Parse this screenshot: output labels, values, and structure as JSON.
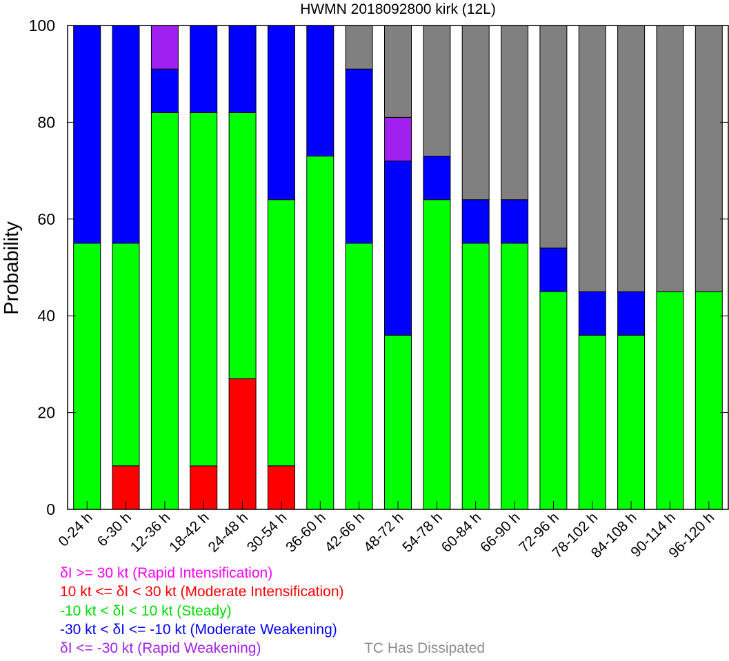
{
  "chart_data": {
    "type": "bar",
    "stacked": true,
    "title": "HWMN 2018092800 kirk (12L)",
    "xlabel": "",
    "ylabel": "Probability",
    "ylim": [
      0,
      100
    ],
    "yticks": [
      0,
      20,
      40,
      60,
      80,
      100
    ],
    "grid": false,
    "categories": [
      "0-24 h",
      "6-30 h",
      "12-36 h",
      "18-42 h",
      "24-48 h",
      "30-54 h",
      "36-60 h",
      "42-66 h",
      "48-72 h",
      "54-78 h",
      "60-84 h",
      "66-90 h",
      "72-96 h",
      "78-102 h",
      "84-108 h",
      "90-114 h",
      "96-120 h"
    ],
    "series": [
      {
        "name": "δI <= -30 kt (Rapid Weakening)",
        "color": "#a020f0",
        "values": [
          0,
          0,
          0,
          0,
          0,
          0,
          0,
          0,
          0,
          0,
          0,
          0,
          0,
          0,
          0,
          0,
          0
        ]
      },
      {
        "name": "10 kt <= δI < 30 kt (Moderate Intensification)",
        "color": "#ff0000",
        "values": [
          0,
          9,
          0,
          9,
          27,
          9,
          0,
          0,
          0,
          0,
          0,
          0,
          0,
          0,
          0,
          0,
          0
        ]
      },
      {
        "name": "-10 kt < δI < 10 kt (Steady)",
        "color": "#00ff00",
        "values": [
          55,
          46,
          82,
          73,
          55,
          55,
          73,
          55,
          36,
          64,
          55,
          55,
          45,
          36,
          36,
          45,
          45
        ]
      },
      {
        "name": "-30 kt < δI <= -10 kt (Moderate Weakening)",
        "color": "#0000ff",
        "values": [
          45,
          45,
          9,
          18,
          18,
          36,
          27,
          36,
          36,
          9,
          9,
          9,
          9,
          9,
          9,
          0,
          0
        ]
      },
      {
        "name": "δI >= 30 kt (Rapid Intensification)",
        "color": "#a020f0",
        "values": [
          0,
          0,
          9,
          0,
          0,
          0,
          0,
          0,
          9,
          0,
          0,
          0,
          0,
          0,
          0,
          0,
          0
        ]
      },
      {
        "name": "TC Has Dissipated",
        "color": "#808080",
        "values": [
          0,
          0,
          0,
          0,
          0,
          0,
          0,
          9,
          19,
          27,
          36,
          36,
          46,
          55,
          55,
          55,
          55
        ]
      }
    ],
    "legend": [
      {
        "text": "δI >= 30 kt (Rapid Intensification)",
        "color": "#ff00ff"
      },
      {
        "text": "10 kt <= δI < 30 kt (Moderate Intensification)",
        "color": "#ff0000"
      },
      {
        "text": "-10 kt < δI < 10 kt (Steady)",
        "color": "#00dd00"
      },
      {
        "text": "-30 kt < δI <= -10 kt (Moderate Weakening)",
        "color": "#0000ff"
      },
      {
        "text": "δI <= -30 kt (Rapid Weakening)",
        "color": "#a020f0"
      },
      {
        "text": "TC Has Dissipated",
        "color": "#8c8c8c"
      }
    ],
    "legend_placement": "bottom-left"
  }
}
